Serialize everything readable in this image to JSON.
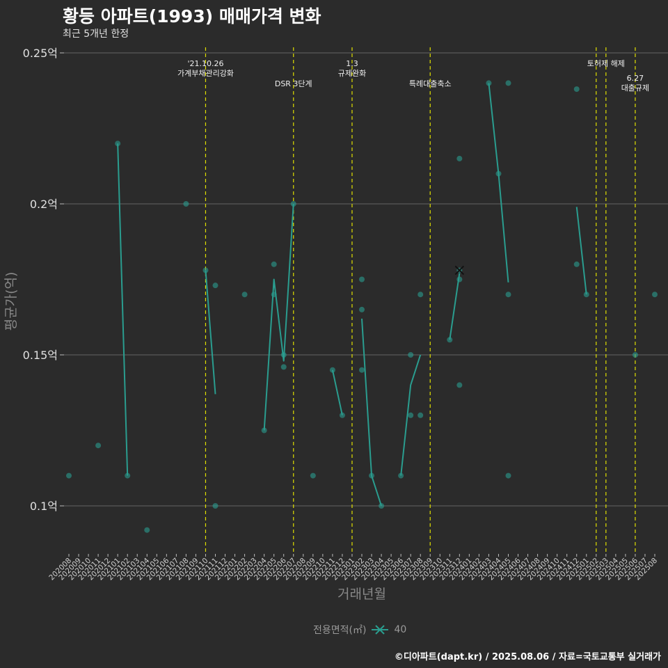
{
  "page": {
    "title": "황등 아파트(1993) 매매가격 변화",
    "subtitle": "최근 5개년 한정",
    "caption": "©디아파트(dapt.kr) / 2025.08.06 / 자료=국토교통부 실거래가",
    "colors": {
      "background": "#2b2b2b",
      "series": "#2a9d8f",
      "event_line": "#e0e000",
      "grid": "#666666",
      "axis_text": "#bbbbbb",
      "axis_title": "#888888"
    }
  },
  "chart_data": {
    "type": "line",
    "xlabel": "거래년월",
    "ylabel": "평균가(억)",
    "ylim": [
      0.085,
      0.25
    ],
    "yticks": [
      0.1,
      0.15,
      0.2,
      0.25
    ],
    "ytick_labels": [
      "0.1억",
      "0.15억",
      "0.2억",
      "0.25억"
    ],
    "grid": true,
    "categories": [
      "202008",
      "202009",
      "202010",
      "202011",
      "202012",
      "202101",
      "202102",
      "202103",
      "202104",
      "202105",
      "202106",
      "202107",
      "202108",
      "202109",
      "202110",
      "202111",
      "202112",
      "202201",
      "202202",
      "202203",
      "202204",
      "202205",
      "202206",
      "202207",
      "202208",
      "202209",
      "202210",
      "202211",
      "202212",
      "202301",
      "202302",
      "202303",
      "202304",
      "202305",
      "202306",
      "202307",
      "202308",
      "202309",
      "202310",
      "202311",
      "202312",
      "202401",
      "202402",
      "202403",
      "202404",
      "202405",
      "202406",
      "202407",
      "202408",
      "202409",
      "202410",
      "202411",
      "202412",
      "202501",
      "202502",
      "202503",
      "202504",
      "202505",
      "202506",
      "202507",
      "202508"
    ],
    "legend": {
      "title": "전용면적(㎡)",
      "entries": [
        "40"
      ],
      "position": "bottom"
    },
    "series": [
      {
        "name": "40",
        "points": [
          {
            "x": "202008",
            "y": 0.11
          },
          {
            "x": "202011",
            "y": 0.12
          },
          {
            "x": "202101",
            "y": 0.22
          },
          {
            "x": "202102",
            "y": 0.11
          },
          {
            "x": "202104",
            "y": 0.092
          },
          {
            "x": "202108",
            "y": 0.2
          },
          {
            "x": "202110",
            "y": 0.178
          },
          {
            "x": "202111",
            "y": 0.173
          },
          {
            "x": "202111",
            "y": 0.1
          },
          {
            "x": "202202",
            "y": 0.17
          },
          {
            "x": "202204",
            "y": 0.125
          },
          {
            "x": "202205",
            "y": 0.18
          },
          {
            "x": "202205",
            "y": 0.17
          },
          {
            "x": "202206",
            "y": 0.146
          },
          {
            "x": "202206",
            "y": 0.15
          },
          {
            "x": "202207",
            "y": 0.2
          },
          {
            "x": "202209",
            "y": 0.11
          },
          {
            "x": "202211",
            "y": 0.145
          },
          {
            "x": "202212",
            "y": 0.13
          },
          {
            "x": "202302",
            "y": 0.175
          },
          {
            "x": "202302",
            "y": 0.165
          },
          {
            "x": "202302",
            "y": 0.145
          },
          {
            "x": "202303",
            "y": 0.11
          },
          {
            "x": "202304",
            "y": 0.1
          },
          {
            "x": "202306",
            "y": 0.11
          },
          {
            "x": "202307",
            "y": 0.15
          },
          {
            "x": "202307",
            "y": 0.13
          },
          {
            "x": "202308",
            "y": 0.17
          },
          {
            "x": "202308",
            "y": 0.13
          },
          {
            "x": "202311",
            "y": 0.155
          },
          {
            "x": "202312",
            "y": 0.215
          },
          {
            "x": "202312",
            "y": 0.178
          },
          {
            "x": "202312",
            "y": 0.175
          },
          {
            "x": "202312",
            "y": 0.14
          },
          {
            "x": "202403",
            "y": 0.24
          },
          {
            "x": "202404",
            "y": 0.21
          },
          {
            "x": "202405",
            "y": 0.24
          },
          {
            "x": "202405",
            "y": 0.17
          },
          {
            "x": "202405",
            "y": 0.11
          },
          {
            "x": "202412",
            "y": 0.238
          },
          {
            "x": "202412",
            "y": 0.18
          },
          {
            "x": "202501",
            "y": 0.17
          },
          {
            "x": "202506",
            "y": 0.15
          },
          {
            "x": "202508",
            "y": 0.17
          }
        ],
        "lines": [
          [
            {
              "x": "202101",
              "y": 0.22
            },
            {
              "x": "202102",
              "y": 0.11
            }
          ],
          [
            {
              "x": "202110",
              "y": 0.178
            },
            {
              "x": "202111",
              "y": 0.137
            }
          ],
          [
            {
              "x": "202204",
              "y": 0.125
            },
            {
              "x": "202205",
              "y": 0.175
            },
            {
              "x": "202206",
              "y": 0.148
            },
            {
              "x": "202207",
              "y": 0.2
            }
          ],
          [
            {
              "x": "202211",
              "y": 0.145
            },
            {
              "x": "202212",
              "y": 0.13
            }
          ],
          [
            {
              "x": "202302",
              "y": 0.162
            },
            {
              "x": "202303",
              "y": 0.11
            },
            {
              "x": "202304",
              "y": 0.1
            }
          ],
          [
            {
              "x": "202306",
              "y": 0.11
            },
            {
              "x": "202307",
              "y": 0.14
            },
            {
              "x": "202308",
              "y": 0.15
            }
          ],
          [
            {
              "x": "202311",
              "y": 0.155
            },
            {
              "x": "202312",
              "y": 0.177
            }
          ],
          [
            {
              "x": "202403",
              "y": 0.24
            },
            {
              "x": "202404",
              "y": 0.21
            },
            {
              "x": "202405",
              "y": 0.174
            }
          ],
          [
            {
              "x": "202412",
              "y": 0.199
            },
            {
              "x": "202501",
              "y": 0.17
            }
          ]
        ],
        "marker": {
          "x": "202312",
          "y": 0.178
        }
      }
    ],
    "annotations": [
      {
        "x": "202110",
        "lines": [
          "'21.10.26",
          "가계부채관리강화"
        ],
        "level": 1
      },
      {
        "x": "202207",
        "lines": [
          "DSR 3단계"
        ],
        "level": 2
      },
      {
        "x": "202301",
        "lines": [
          "1.3",
          "규제완화"
        ],
        "level": 1
      },
      {
        "x": "202309",
        "lines": [
          "특례대출축소"
        ],
        "level": 2
      },
      {
        "x": "202502",
        "lines": [],
        "level": 1
      },
      {
        "x": "202503",
        "lines": [
          "토허제 해제"
        ],
        "level": 1
      },
      {
        "x": "202506",
        "lines": [
          "6.27",
          "대출규제"
        ],
        "level": 3
      }
    ]
  }
}
